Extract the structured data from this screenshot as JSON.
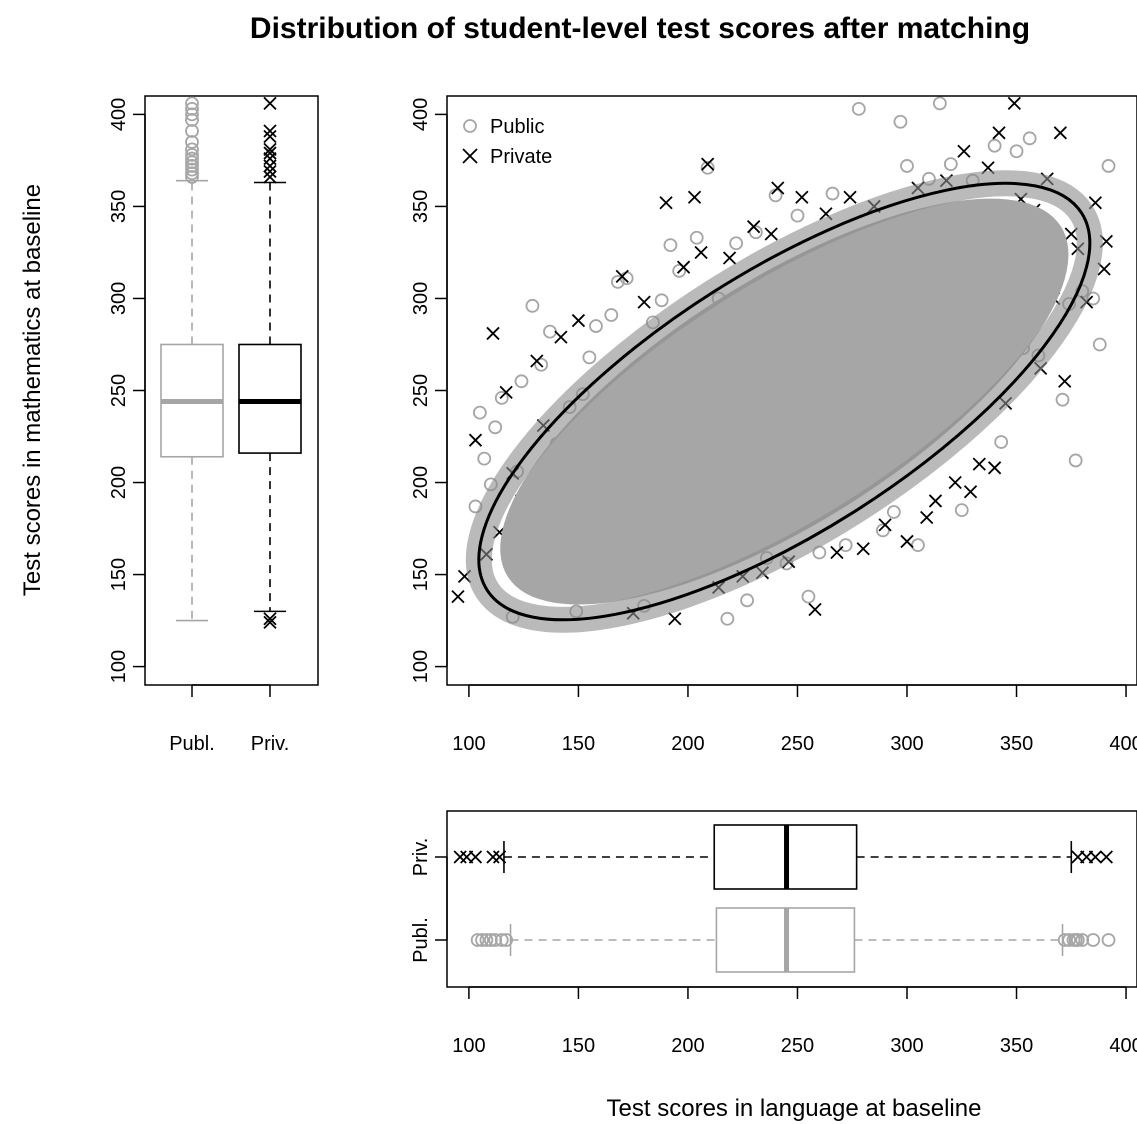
{
  "title": "Distribution of student-level test scores after matching",
  "ylabel": "Test scores in mathematics at baseline",
  "xlabel": "Test scores in language at baseline",
  "colors": {
    "public": "#a6a6a6",
    "private": "#000000"
  },
  "legend": {
    "placement": "top-left",
    "public_label": "Public",
    "private_label": "Private",
    "public_marker": "open-circle",
    "private_marker": "x-cross"
  },
  "chart_data": [
    {
      "type": "boxplot",
      "name": "Math scores by school type",
      "axis": "y",
      "ylim": [
        90,
        410
      ],
      "ticks": [
        100,
        150,
        200,
        250,
        300,
        350,
        400
      ],
      "categories": [
        "Publ.",
        "Priv."
      ],
      "boxes": [
        {
          "category": "Publ.",
          "whisker_low": 125,
          "q1": 214,
          "median": 244,
          "q3": 275,
          "whisker_high": 364,
          "outliers_high": [
            366,
            368,
            370,
            372,
            374,
            376,
            378,
            381,
            385,
            391,
            397,
            400,
            403,
            406
          ],
          "outliers_low": []
        },
        {
          "category": "Priv.",
          "whisker_low": 130,
          "q1": 216,
          "median": 244,
          "q3": 275,
          "whisker_high": 363,
          "outliers_high": [
            366,
            369,
            372,
            376,
            379,
            381,
            388,
            391,
            406
          ],
          "outliers_low": [
            124,
            126
          ]
        }
      ]
    },
    {
      "type": "scatter",
      "name": "Language vs mathematics",
      "xlim": [
        90,
        405
      ],
      "ylim": [
        90,
        410
      ],
      "xticks": [
        100,
        150,
        200,
        250,
        300,
        350,
        400
      ],
      "yticks": [
        100,
        150,
        200,
        250,
        300,
        350,
        400
      ],
      "ellipse": {
        "center": [
          244,
          244
        ],
        "semi_major": 170,
        "semi_minor": 65,
        "angle_deg": 37
      },
      "series": [
        {
          "name": "Public",
          "points": [
            [
              103,
              187
            ],
            [
              105,
              238
            ],
            [
              107,
              213
            ],
            [
              110,
              199
            ],
            [
              112,
              230
            ],
            [
              115,
              246
            ],
            [
              118,
              170
            ],
            [
              120,
              127
            ],
            [
              122,
              206
            ],
            [
              124,
              255
            ],
            [
              127,
              196
            ],
            [
              129,
              296
            ],
            [
              131,
              143
            ],
            [
              133,
              264
            ],
            [
              135,
              179
            ],
            [
              137,
              282
            ],
            [
              140,
              221
            ],
            [
              143,
              169
            ],
            [
              146,
              241
            ],
            [
              149,
              130
            ],
            [
              152,
              248
            ],
            [
              155,
              268
            ],
            [
              158,
              285
            ],
            [
              161,
              212
            ],
            [
              165,
              291
            ],
            [
              168,
              309
            ],
            [
              172,
              311
            ],
            [
              176,
              262
            ],
            [
              180,
              133
            ],
            [
              184,
              287
            ],
            [
              188,
              299
            ],
            [
              192,
              329
            ],
            [
              196,
              315
            ],
            [
              200,
              167
            ],
            [
              204,
              333
            ],
            [
              209,
              371
            ],
            [
              214,
              300
            ],
            [
              218,
              126
            ],
            [
              222,
              330
            ],
            [
              227,
              136
            ],
            [
              231,
              336
            ],
            [
              236,
              159
            ],
            [
              240,
              356
            ],
            [
              245,
              156
            ],
            [
              250,
              345
            ],
            [
              255,
              138
            ],
            [
              260,
              162
            ],
            [
              266,
              357
            ],
            [
              272,
              166
            ],
            [
              278,
              403
            ],
            [
              284,
              335
            ],
            [
              289,
              174
            ],
            [
              294,
              184
            ],
            [
              297,
              396
            ],
            [
              300,
              372
            ],
            [
              305,
              166
            ],
            [
              310,
              365
            ],
            [
              315,
              406
            ],
            [
              320,
              373
            ],
            [
              325,
              185
            ],
            [
              330,
              364
            ],
            [
              335,
              268
            ],
            [
              340,
              383
            ],
            [
              343,
              222
            ],
            [
              346,
              301
            ],
            [
              350,
              380
            ],
            [
              353,
              273
            ],
            [
              356,
              387
            ],
            [
              360,
              269
            ],
            [
              364,
              329
            ],
            [
              368,
              336
            ],
            [
              371,
              245
            ],
            [
              374,
              297
            ],
            [
              377,
              212
            ],
            [
              380,
              304
            ],
            [
              385,
              300
            ],
            [
              388,
              275
            ],
            [
              392,
              372
            ]
          ]
        },
        {
          "name": "Private",
          "points": [
            [
              95,
              138
            ],
            [
              98,
              149
            ],
            [
              103,
              223
            ],
            [
              108,
              161
            ],
            [
              111,
              281
            ],
            [
              114,
              173
            ],
            [
              117,
              249
            ],
            [
              120,
              205
            ],
            [
              124,
              190
            ],
            [
              128,
              145
            ],
            [
              131,
              266
            ],
            [
              134,
              231
            ],
            [
              138,
              180
            ],
            [
              142,
              279
            ],
            [
              146,
              158
            ],
            [
              150,
              288
            ],
            [
              155,
              214
            ],
            [
              160,
              193
            ],
            [
              165,
              232
            ],
            [
              170,
              312
            ],
            [
              175,
              129
            ],
            [
              180,
              298
            ],
            [
              185,
              148
            ],
            [
              190,
              352
            ],
            [
              194,
              126
            ],
            [
              198,
              317
            ],
            [
              203,
              355
            ],
            [
              206,
              325
            ],
            [
              209,
              373
            ],
            [
              214,
              143
            ],
            [
              219,
              322
            ],
            [
              225,
              149
            ],
            [
              230,
              339
            ],
            [
              234,
              151
            ],
            [
              238,
              335
            ],
            [
              241,
              360
            ],
            [
              246,
              157
            ],
            [
              252,
              355
            ],
            [
              258,
              131
            ],
            [
              263,
              346
            ],
            [
              268,
              162
            ],
            [
              274,
              355
            ],
            [
              280,
              164
            ],
            [
              285,
              350
            ],
            [
              290,
              177
            ],
            [
              295,
              320
            ],
            [
              300,
              168
            ],
            [
              305,
              360
            ],
            [
              309,
              181
            ],
            [
              313,
              190
            ],
            [
              318,
              364
            ],
            [
              322,
              200
            ],
            [
              326,
              380
            ],
            [
              329,
              195
            ],
            [
              333,
              210
            ],
            [
              337,
              371
            ],
            [
              340,
              208
            ],
            [
              342,
              390
            ],
            [
              345,
              243
            ],
            [
              349,
              406
            ],
            [
              352,
              354
            ],
            [
              355,
              302
            ],
            [
              358,
              348
            ],
            [
              361,
              262
            ],
            [
              364,
              365
            ],
            [
              367,
              300
            ],
            [
              370,
              390
            ],
            [
              372,
              255
            ],
            [
              375,
              335
            ],
            [
              378,
              327
            ],
            [
              382,
              298
            ],
            [
              386,
              352
            ],
            [
              390,
              316
            ],
            [
              391,
              331
            ]
          ]
        }
      ]
    },
    {
      "type": "boxplot",
      "name": "Language scores by school type",
      "axis": "x",
      "xlim": [
        90,
        405
      ],
      "ticks": [
        100,
        150,
        200,
        250,
        300,
        350,
        400
      ],
      "categories": [
        "Priv.",
        "Publ."
      ],
      "boxes": [
        {
          "category": "Priv.",
          "whisker_low": 116,
          "q1": 212,
          "median": 245,
          "q3": 277,
          "whisker_high": 375,
          "outliers_low": [
            96,
            99,
            103,
            111,
            114
          ],
          "outliers_high": [
            378,
            382,
            386,
            391
          ]
        },
        {
          "category": "Publ.",
          "whisker_low": 119,
          "q1": 213,
          "median": 245,
          "q3": 276,
          "whisker_high": 371,
          "outliers_low": [
            104,
            106,
            108,
            110,
            112,
            115,
            117
          ],
          "outliers_high": [
            372,
            374,
            376,
            377,
            378,
            380,
            385,
            392
          ]
        }
      ]
    }
  ]
}
